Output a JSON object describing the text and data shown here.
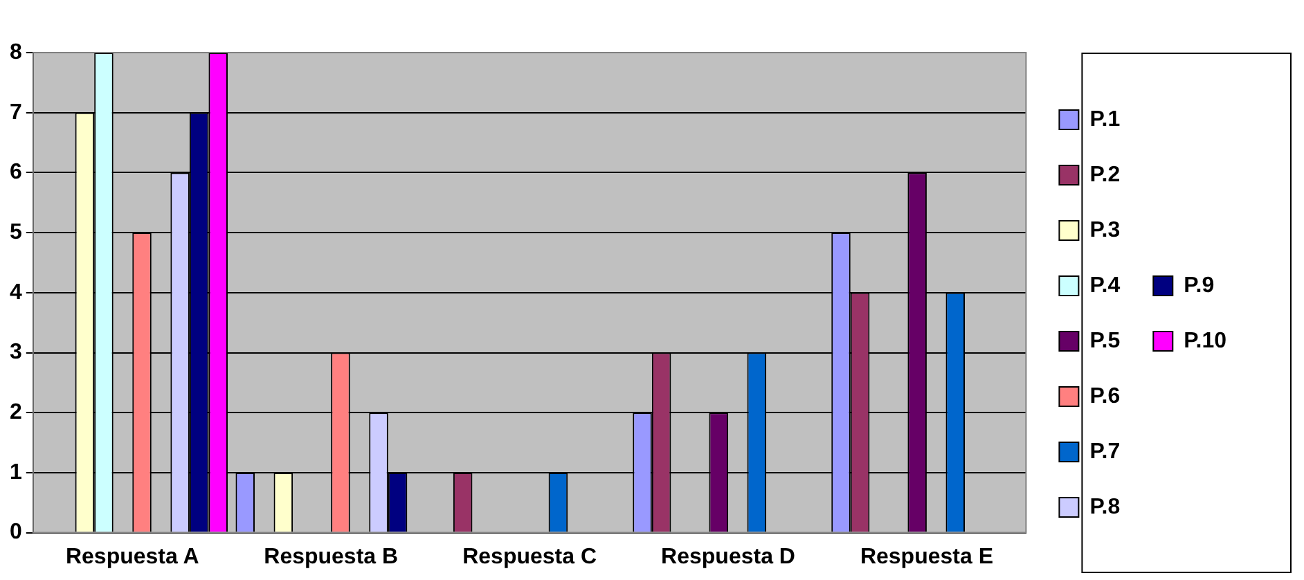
{
  "chart_data": {
    "type": "bar",
    "categories": [
      "Respuesta A",
      "Respuesta B",
      "Respuesta C",
      "Respuesta D",
      "Respuesta E"
    ],
    "series": [
      {
        "name": "P.1",
        "color": "#9999ff",
        "values": [
          0,
          1,
          0,
          2,
          5
        ]
      },
      {
        "name": "P.2",
        "color": "#993366",
        "values": [
          0,
          0,
          1,
          3,
          4
        ]
      },
      {
        "name": "P.3",
        "color": "#ffffcc",
        "values": [
          7,
          1,
          0,
          0,
          0
        ]
      },
      {
        "name": "P.4",
        "color": "#ccffff",
        "values": [
          8,
          0,
          0,
          0,
          0
        ]
      },
      {
        "name": "P.5",
        "color": "#660066",
        "values": [
          0,
          0,
          0,
          2,
          6
        ]
      },
      {
        "name": "P.6",
        "color": "#ff8080",
        "values": [
          5,
          3,
          0,
          0,
          0
        ]
      },
      {
        "name": "P.7",
        "color": "#0066cc",
        "values": [
          0,
          0,
          1,
          3,
          4
        ]
      },
      {
        "name": "P.8",
        "color": "#ccccff",
        "values": [
          6,
          2,
          0,
          0,
          0
        ]
      },
      {
        "name": "P.9",
        "color": "#000080",
        "values": [
          7,
          1,
          0,
          0,
          0
        ]
      },
      {
        "name": "P.10",
        "color": "#ff00ff",
        "values": [
          8,
          0,
          0,
          0,
          0
        ]
      }
    ],
    "ylim": [
      0,
      8
    ],
    "yticks": [
      0,
      1,
      2,
      3,
      4,
      5,
      6,
      7,
      8
    ],
    "grid": "y",
    "legend": "right"
  }
}
